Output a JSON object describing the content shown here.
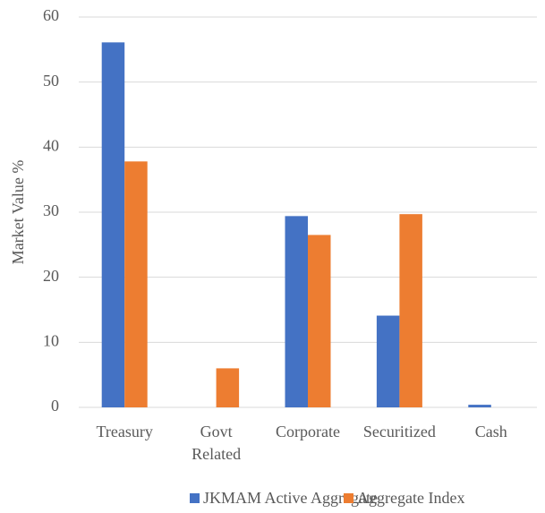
{
  "chart_data": {
    "type": "bar",
    "y_label": "Market Value %",
    "categories": [
      "Treasury",
      "Govt Related",
      "Corporate",
      "Securitized",
      "Cash"
    ],
    "series": [
      {
        "name": "JKMAM Active Aggregate",
        "color": "#4472c4",
        "values": [
          56.1,
          0,
          29.4,
          14.1,
          0.4
        ]
      },
      {
        "name": "Aggregate Index",
        "color": "#ed7d31",
        "values": [
          37.8,
          6.0,
          26.5,
          29.7,
          0
        ]
      }
    ],
    "ylim": [
      0,
      60
    ],
    "yticks": [
      0,
      10,
      20,
      30,
      40,
      50,
      60
    ],
    "grid": true,
    "legend": "bottom"
  }
}
